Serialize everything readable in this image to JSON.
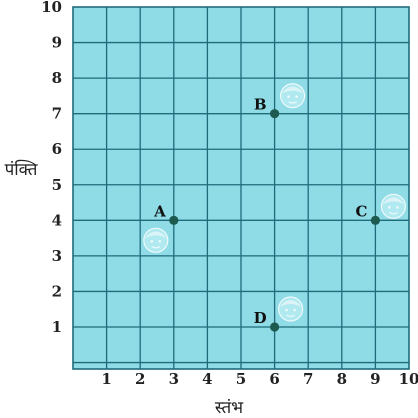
{
  "chart_data": {
    "type": "scatter",
    "x_ticks": [
      "1",
      "2",
      "3",
      "4",
      "5",
      "6",
      "7",
      "8",
      "9",
      "10"
    ],
    "y_ticks": [
      "1",
      "2",
      "3",
      "4",
      "5",
      "6",
      "7",
      "8",
      "9",
      "10"
    ],
    "xlabel": "स्तंभ",
    "ylabel": "पंक्ति",
    "xlim": [
      0,
      10
    ],
    "ylim": [
      0,
      10
    ],
    "grid": true,
    "points": [
      {
        "label": "A",
        "x": 3,
        "y": 4
      },
      {
        "label": "B",
        "x": 6,
        "y": 7
      },
      {
        "label": "C",
        "x": 9,
        "y": 4
      },
      {
        "label": "D",
        "x": 6,
        "y": 1
      }
    ]
  },
  "colors": {
    "grid_fill": "#8fdbe6",
    "grid_line": "#1f6b7a",
    "point": "#1d5a4f",
    "tick_text": "#222222",
    "avatar": "#b8ecf2"
  },
  "avatars": [
    {
      "near": "A",
      "icon": "girl-face-icon"
    },
    {
      "near": "B",
      "icon": "boy-face-icon"
    },
    {
      "near": "C",
      "icon": "boy-face-icon"
    },
    {
      "near": "D",
      "icon": "girl-face-icon"
    }
  ]
}
